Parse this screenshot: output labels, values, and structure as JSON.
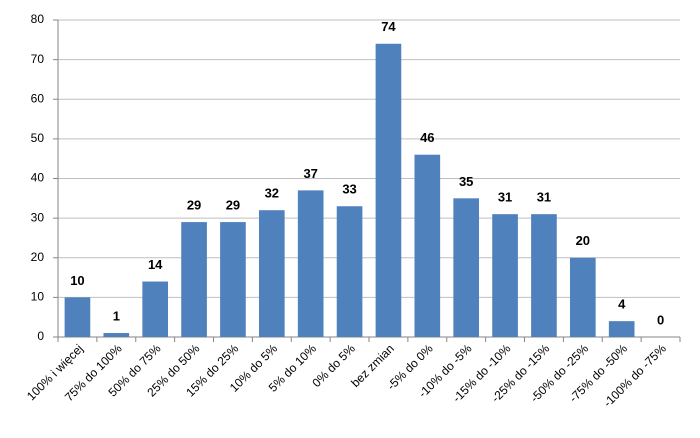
{
  "chart_data": {
    "type": "bar",
    "categories": [
      "100% i więcej",
      "75% do 100%",
      "50% do 75%",
      "25% do 50%",
      "15% do 25%",
      "10% do 5%",
      "5% do 10%",
      "0% do 5%",
      "bez zmian",
      "-5% do 0%",
      "-10% do -5%",
      "-15% do -10%",
      "-25% do -15%",
      "-50% do -25%",
      "-75% do -50%",
      "-100% do -75%"
    ],
    "values": [
      10,
      1,
      14,
      29,
      29,
      32,
      37,
      33,
      74,
      46,
      35,
      31,
      31,
      20,
      4,
      0
    ],
    "color": "#4f81bd",
    "ylim": [
      0,
      80
    ],
    "yticks": [
      0,
      10,
      20,
      30,
      40,
      50,
      60,
      70,
      80
    ],
    "grid": true
  }
}
